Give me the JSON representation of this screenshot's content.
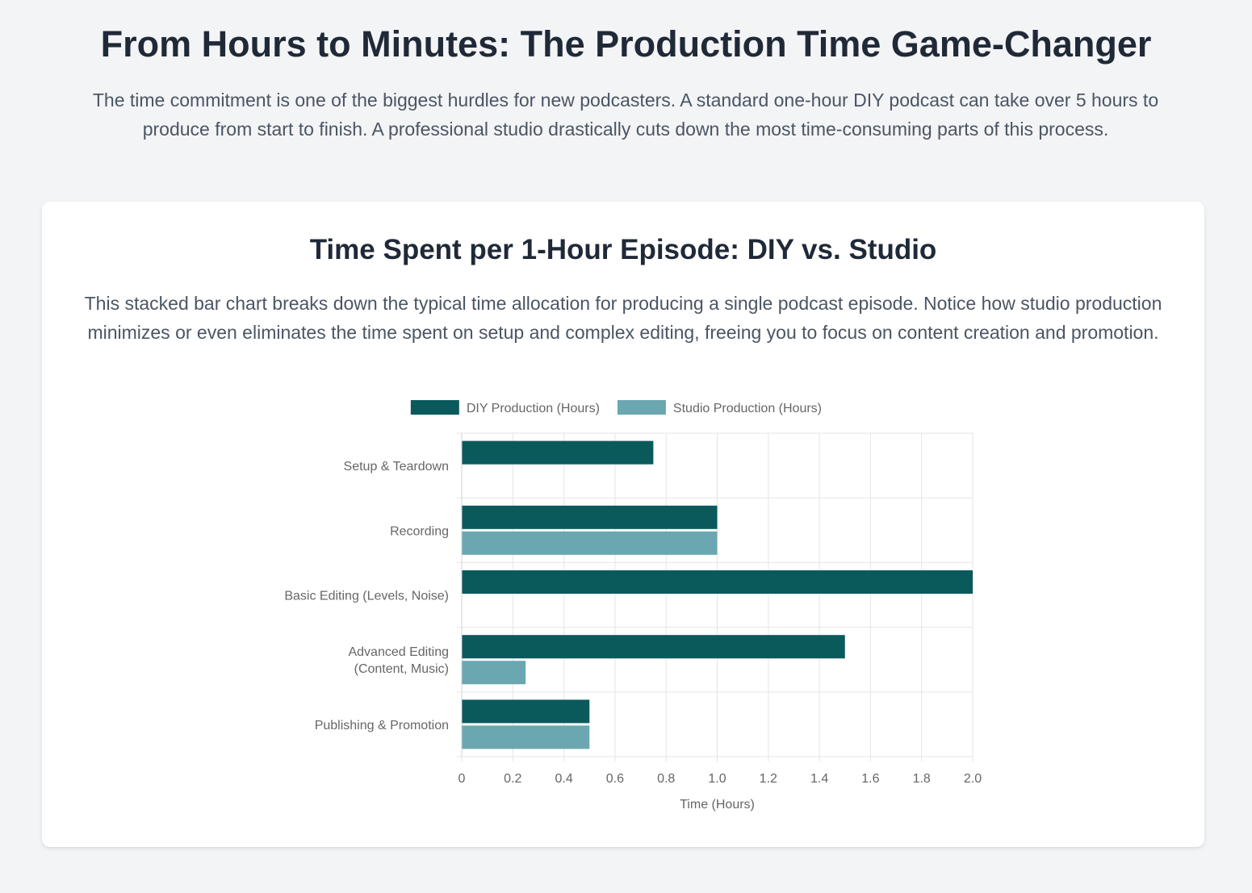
{
  "header": {
    "title": "From Hours to Minutes: The Production Time Game-Changer",
    "intro": "The time commitment is one of the biggest hurdles for new podcasters. A standard one-hour DIY podcast can take over 5 hours to produce from start to finish. A professional studio drastically cuts down the most time-consuming parts of this process."
  },
  "card": {
    "title": "Time Spent per 1-Hour Episode: DIY vs. Studio",
    "description": "This stacked bar chart breaks down the typical time allocation for producing a single podcast episode. Notice how studio production minimizes or even eliminates the time spent on setup and complex editing, freeing you to focus on content creation and promotion."
  },
  "colors": {
    "diy": "#0a5a5c",
    "studio": "#6aa7b0",
    "grid": "#e5e5e5",
    "axis_text": "#666666"
  },
  "chart_data": {
    "type": "bar",
    "orientation": "horizontal",
    "categories": [
      [
        "Setup & Teardown"
      ],
      [
        "Recording"
      ],
      [
        "Basic Editing (Levels, Noise)"
      ],
      [
        "Advanced Editing",
        "(Content, Music)"
      ],
      [
        "Publishing & Promotion"
      ]
    ],
    "series": [
      {
        "name": "DIY Production (Hours)",
        "values": [
          0.75,
          1.0,
          2.0,
          1.5,
          0.5
        ]
      },
      {
        "name": "Studio Production (Hours)",
        "values": [
          0,
          1.0,
          0,
          0.25,
          0.5
        ]
      }
    ],
    "xlabel": "Time (Hours)",
    "ylabel": "",
    "xlim": [
      0,
      2.0
    ],
    "xticks": [
      "0",
      "0.2",
      "0.4",
      "0.6",
      "0.8",
      "1.0",
      "1.2",
      "1.4",
      "1.6",
      "1.8",
      "2.0"
    ],
    "grid": true,
    "legend": "top-center"
  }
}
